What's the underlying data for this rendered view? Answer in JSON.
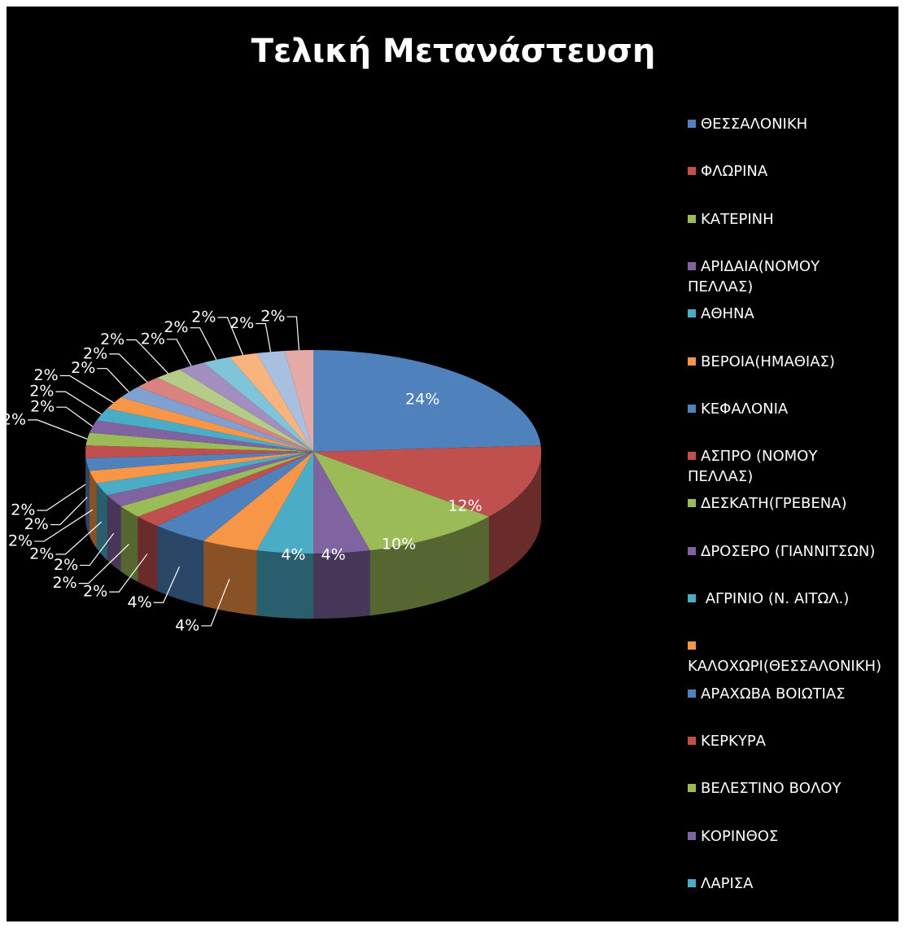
{
  "chart_data": {
    "type": "pie3d",
    "title": "Τελική Μετανάστευση",
    "categories": [
      "ΘΕΣΣΑΛΟΝΙΚΗ",
      "ΦΛΩΡΙΝΑ",
      "ΚΑΤΕΡΙΝΗ",
      "ΑΡΙΔΑΙΑ(ΝΟΜΟΥ ΠΕΛΛΑΣ)",
      "ΑΘΗΝΑ",
      "ΒΕΡΟΙΑ(ΗΜΑΘΙΑΣ)",
      "ΚΕΦΑΛΟΝΙΑ",
      "ΑΣΠΡΟ (ΝΟΜΟΥ ΠΕΛΛΑΣ)",
      "ΔΕΣΚΑΤΗ(ΓΡΕΒΕΝΑ)",
      "ΔΡΟΣΕΡΟ (ΓΙΑΝΝΙΤΣΩΝ)",
      " ΑΓΡΙΝΙΟ (Ν. ΑΙΤΩΛ.)",
      "ΚΑΛΟΧΩΡΙ(ΘΕΣΣΑΛΟΝΙΚΗ)",
      "ΑΡΑΧΩΒΑ ΒΟΙΩΤΙΑΣ",
      "ΚΕΡΚΥΡΑ",
      "ΒΕΛΕΣΤΙΝΟ ΒΟΛΟΥ",
      "ΚΟΡΙΝΘΟΣ",
      "ΛΑΡΙΣΑ",
      null,
      null,
      null,
      null,
      null,
      null,
      null,
      null,
      null
    ],
    "values": [
      24,
      12,
      10,
      4,
      4,
      4,
      4,
      2,
      2,
      2,
      2,
      2,
      2,
      2,
      2,
      2,
      2,
      2,
      2,
      2,
      2,
      2,
      2,
      2,
      2,
      2
    ],
    "value_labels": [
      "24%",
      "12%",
      "10%",
      "4%",
      "4%",
      "4%",
      "4%",
      "2%",
      "2%",
      "2%",
      "2%",
      "2%",
      "2%",
      "2%",
      "2%",
      "2%",
      "2%",
      "2%",
      "2%",
      "2%",
      "2%",
      "2%",
      "2%",
      "2%",
      "2%",
      "2%"
    ],
    "colors": [
      "#4f81bd",
      "#c0504d",
      "#9bbb59",
      "#8064a2",
      "#4bacc6",
      "#f79646",
      "#4f81bd",
      "#c0504d",
      "#9bbb59",
      "#8064a2",
      "#4bacc6",
      "#f79646",
      "#4f81bd",
      "#c0504d",
      "#9bbb59",
      "#8064a2",
      "#4bacc6",
      "#f79646",
      "#7fa0d0",
      "#d98280",
      "#b5cc88",
      "#a28fc0",
      "#7fc4d8",
      "#f9b37e",
      "#a9bfe0",
      "#e4aaa8"
    ],
    "legend": "right"
  }
}
